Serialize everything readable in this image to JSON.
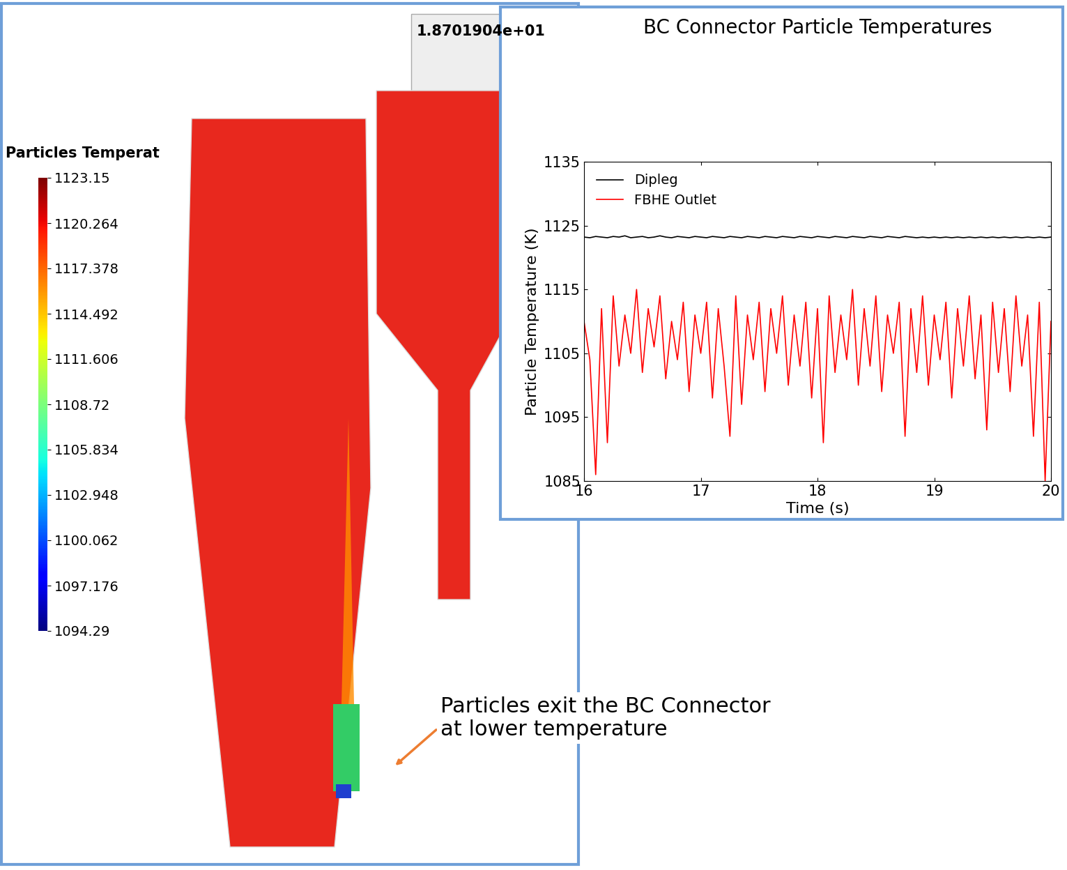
{
  "chart_data": {
    "type": "line",
    "title": "BC Connector Particle Temperatures",
    "x_label": "Time (s)",
    "y_label": "Particle Temperature (K)",
    "xlim": [
      16,
      20
    ],
    "xticks": [
      16,
      17,
      18,
      19,
      20
    ],
    "ylim": [
      1085,
      1135
    ],
    "yticks": [
      1085,
      1095,
      1105,
      1115,
      1125,
      1135
    ],
    "grid": false,
    "legend": "upper left",
    "x": [
      16.0,
      16.05,
      16.1,
      16.15,
      16.2,
      16.25,
      16.3,
      16.35,
      16.4,
      16.45,
      16.5,
      16.55,
      16.6,
      16.65,
      16.7,
      16.75,
      16.8,
      16.85,
      16.9,
      16.95,
      17.0,
      17.05,
      17.1,
      17.15,
      17.2,
      17.25,
      17.3,
      17.35,
      17.4,
      17.45,
      17.5,
      17.55,
      17.6,
      17.65,
      17.7,
      17.75,
      17.8,
      17.85,
      17.9,
      17.95,
      18.0,
      18.05,
      18.1,
      18.15,
      18.2,
      18.25,
      18.3,
      18.35,
      18.4,
      18.45,
      18.5,
      18.55,
      18.6,
      18.65,
      18.7,
      18.75,
      18.8,
      18.85,
      18.9,
      18.95,
      19.0,
      19.05,
      19.1,
      19.15,
      19.2,
      19.25,
      19.3,
      19.35,
      19.4,
      19.45,
      19.5,
      19.55,
      19.6,
      19.65,
      19.7,
      19.75,
      19.8,
      19.85,
      19.9,
      19.95,
      20.0
    ],
    "series": [
      {
        "name": "Dipleg",
        "color": "#000000",
        "values": [
          1123.2,
          1123.1,
          1123.3,
          1123.2,
          1123.1,
          1123.3,
          1123.2,
          1123.4,
          1123.1,
          1123.2,
          1123.3,
          1123.1,
          1123.2,
          1123.4,
          1123.2,
          1123.1,
          1123.3,
          1123.2,
          1123.1,
          1123.3,
          1123.2,
          1123.1,
          1123.3,
          1123.2,
          1123.1,
          1123.3,
          1123.2,
          1123.1,
          1123.3,
          1123.2,
          1123.1,
          1123.3,
          1123.2,
          1123.1,
          1123.3,
          1123.2,
          1123.1,
          1123.3,
          1123.2,
          1123.1,
          1123.3,
          1123.2,
          1123.1,
          1123.3,
          1123.2,
          1123.1,
          1123.3,
          1123.2,
          1123.1,
          1123.3,
          1123.2,
          1123.1,
          1123.3,
          1123.2,
          1123.1,
          1123.3,
          1123.2,
          1123.1,
          1123.2,
          1123.1,
          1123.2,
          1123.1,
          1123.2,
          1123.1,
          1123.2,
          1123.1,
          1123.2,
          1123.1,
          1123.2,
          1123.1,
          1123.2,
          1123.1,
          1123.2,
          1123.1,
          1123.2,
          1123.1,
          1123.2,
          1123.1,
          1123.2,
          1123.1,
          1123.2
        ]
      },
      {
        "name": "FBHE Outlet",
        "color": "#ff0000",
        "values": [
          1110,
          1104,
          1086,
          1112,
          1091,
          1114,
          1103,
          1111,
          1105,
          1115,
          1102,
          1112,
          1106,
          1114,
          1101,
          1110,
          1104,
          1113,
          1099,
          1111,
          1105,
          1113,
          1098,
          1112,
          1103,
          1092,
          1114,
          1097,
          1111,
          1104,
          1113,
          1099,
          1112,
          1105,
          1114,
          1100,
          1111,
          1103,
          1113,
          1098,
          1112,
          1091,
          1114,
          1102,
          1111,
          1104,
          1115,
          1100,
          1112,
          1103,
          1114,
          1099,
          1111,
          1105,
          1113,
          1092,
          1112,
          1102,
          1114,
          1100,
          1111,
          1104,
          1113,
          1098,
          1112,
          1103,
          1114,
          1101,
          1111,
          1093,
          1113,
          1102,
          1112,
          1099,
          1114,
          1103,
          1111,
          1092,
          1113,
          1085,
          1110
        ]
      }
    ]
  },
  "render": {
    "time": "1.8701904e+01",
    "colorbar": {
      "title": "Particles Temperat",
      "range": [
        1094.29,
        1123.15
      ],
      "ticks": [
        1123.15,
        1120.264,
        1117.378,
        1114.492,
        1111.606,
        1108.72,
        1105.834,
        1102.948,
        1100.062,
        1097.176,
        1094.29
      ]
    },
    "annotation": "Particles exit the BC Connector\nat lower temperature"
  }
}
